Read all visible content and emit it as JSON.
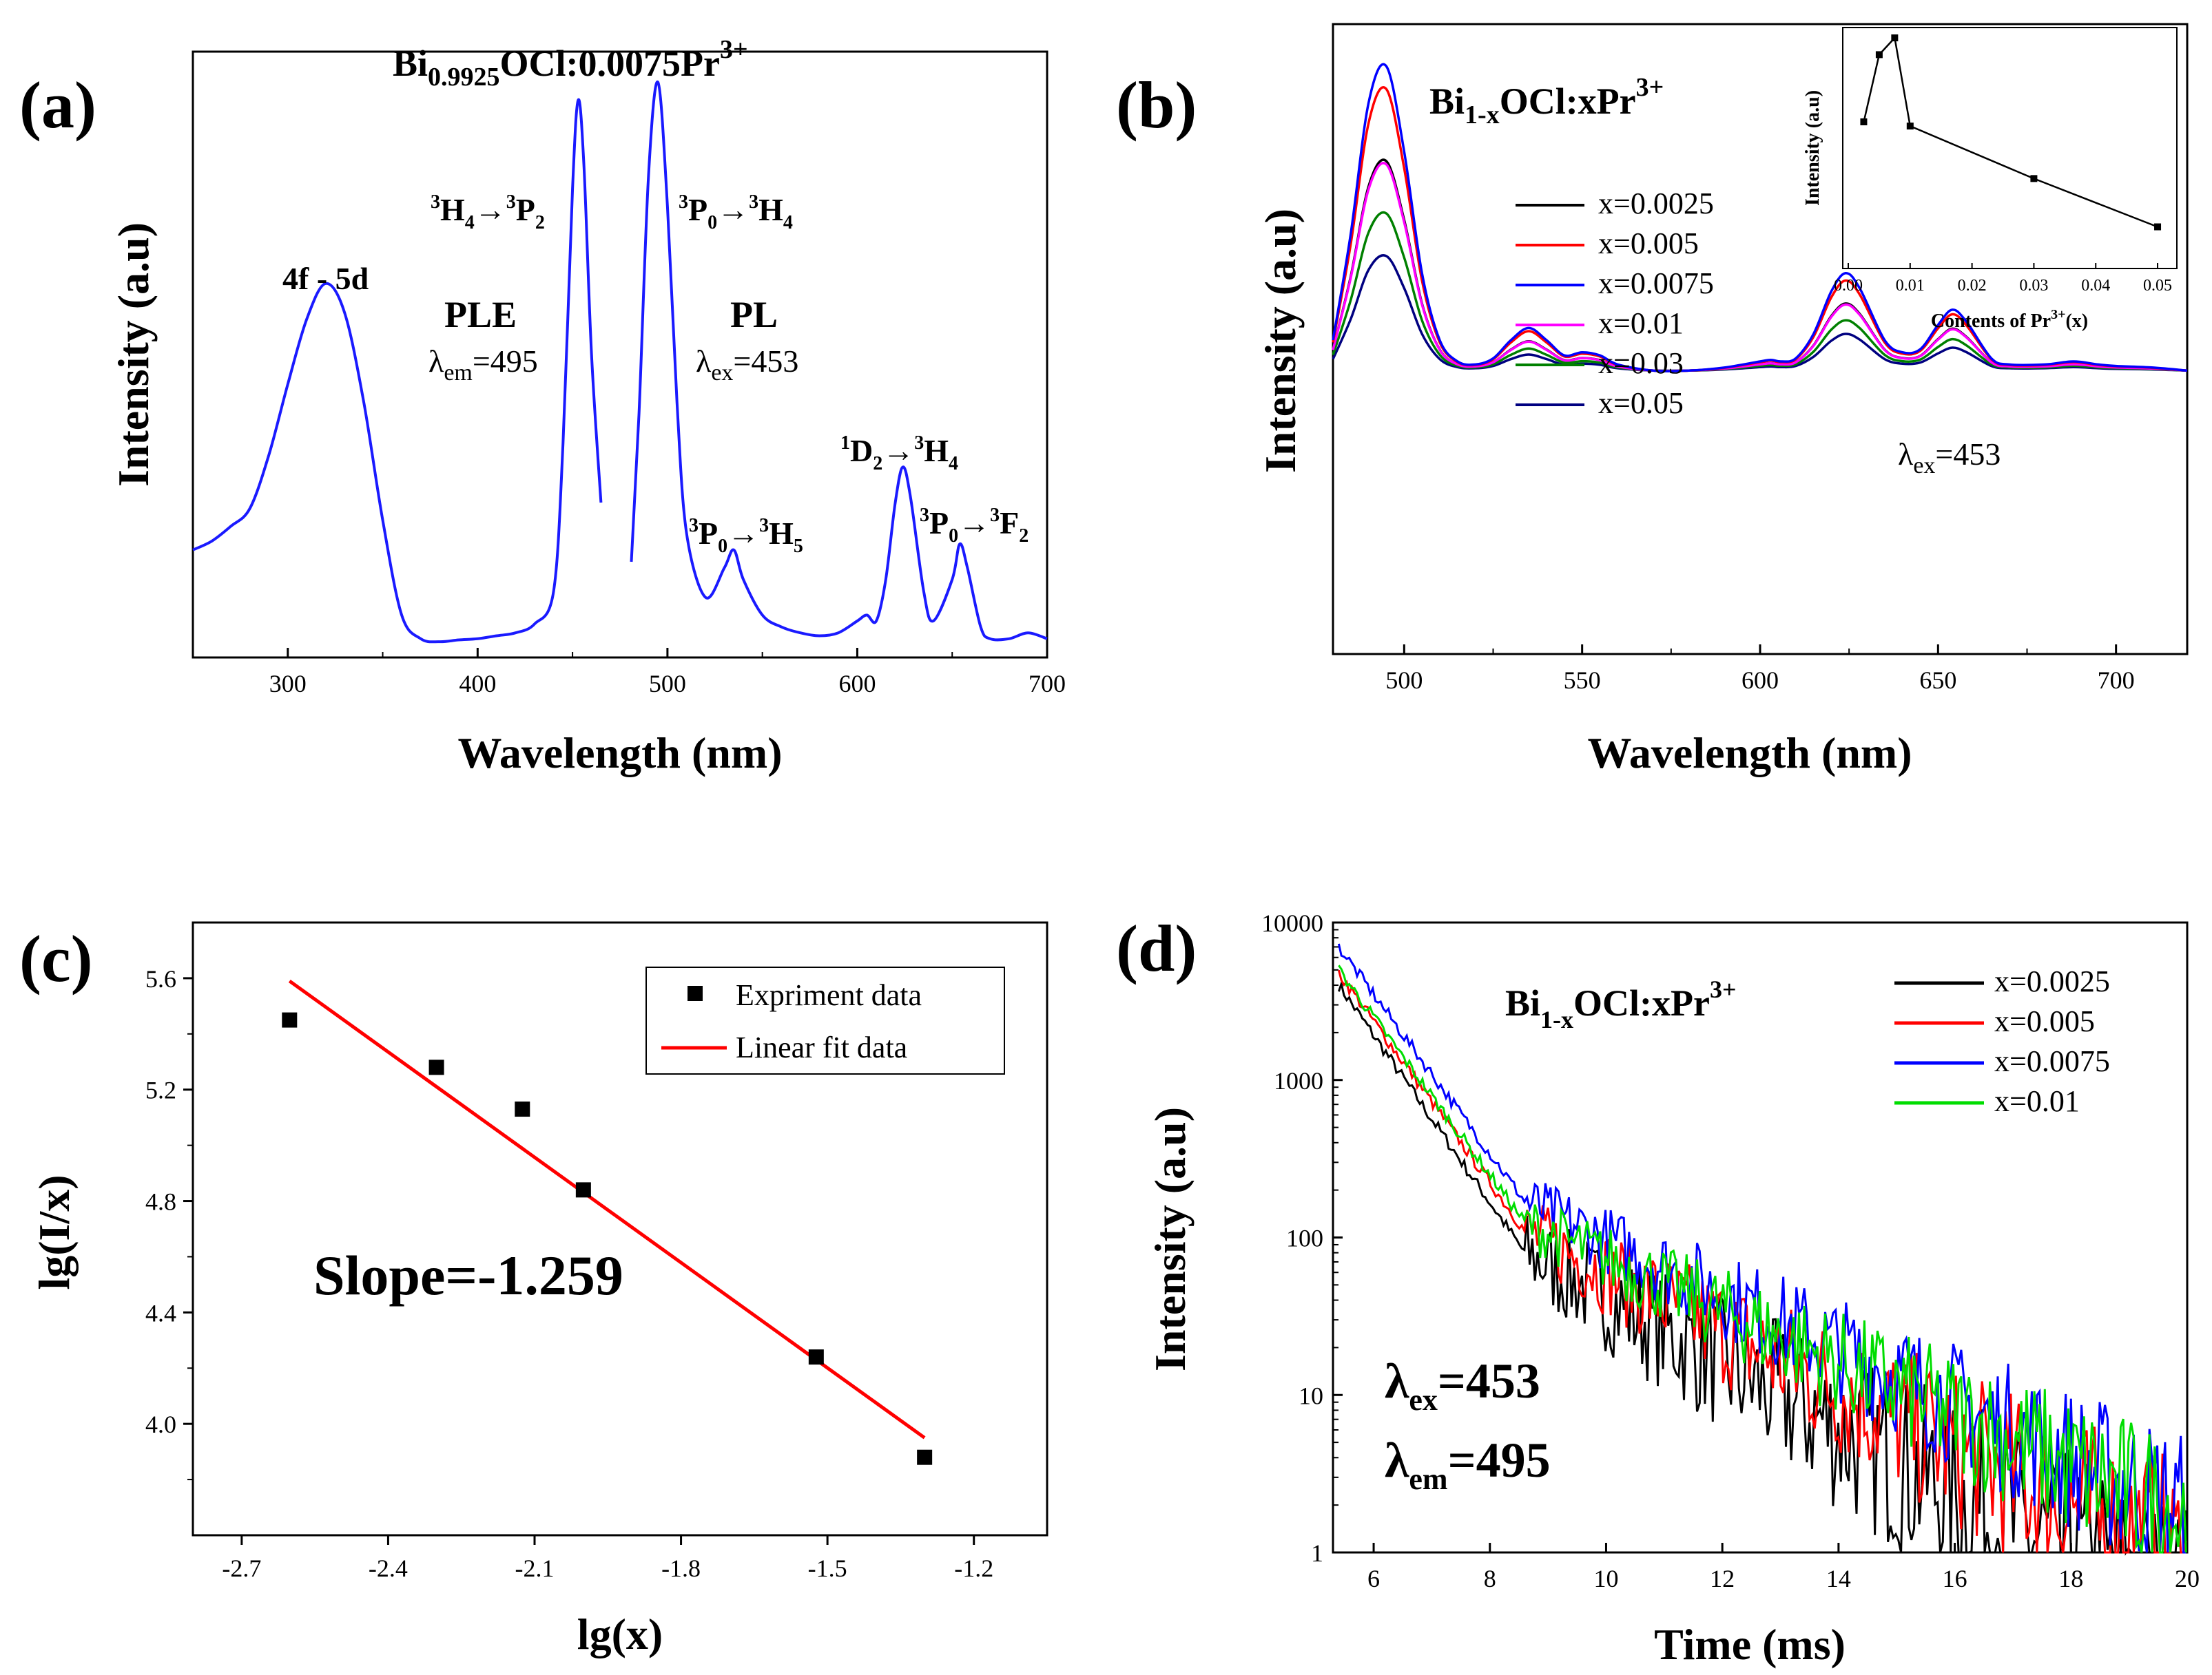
{
  "chart_data": [
    {
      "panel": "(a)",
      "type": "line",
      "xlabel": "Wavelength (nm)",
      "ylabel": "Intensity (a.u)",
      "xlim": [
        250,
        700
      ],
      "ylim": [
        0,
        1.0
      ],
      "xticks": [
        300,
        400,
        500,
        600,
        700
      ],
      "annotations": {
        "title": "Bi0.9925OCl:0.0075Pr3+",
        "band_4f5d": "4f - 5d",
        "ple": "PLE",
        "ple_lambda": "λem=495",
        "pl": "PL",
        "pl_lambda": "λex=453",
        "t_3H4_3P2": "3H4→3P2",
        "t_3P0_3H4": "3P0→3H4",
        "t_3P0_3H5": "3P0→3H5",
        "t_1D2_3H4": "1D2→3H4",
        "t_3P0_3F2": "3P0→3F2"
      },
      "series": [
        {
          "name": "PLE",
          "color": "#1a1aff",
          "x": [
            250,
            260,
            270,
            280,
            290,
            300,
            310,
            320,
            330,
            340,
            350,
            360,
            370,
            380,
            390,
            400,
            410,
            420,
            430,
            440,
            445,
            450,
            453,
            456,
            460,
            465
          ],
          "y": [
            0.17,
            0.185,
            0.21,
            0.24,
            0.33,
            0.45,
            0.56,
            0.62,
            0.57,
            0.42,
            0.22,
            0.06,
            0.02,
            0.015,
            0.018,
            0.02,
            0.025,
            0.03,
            0.045,
            0.1,
            0.35,
            0.78,
            0.93,
            0.82,
            0.5,
            0.25
          ]
        },
        {
          "name": "PL",
          "color": "#1a1aff",
          "x": [
            481,
            485,
            490,
            495,
            500,
            505,
            510,
            520,
            530,
            535,
            540,
            550,
            560,
            570,
            580,
            590,
            600,
            605,
            610,
            615,
            620,
            624,
            628,
            635,
            640,
            650,
            654,
            658,
            665,
            670,
            680,
            690,
            700
          ],
          "y": [
            0.15,
            0.4,
            0.8,
            0.96,
            0.75,
            0.42,
            0.2,
            0.09,
            0.14,
            0.17,
            0.12,
            0.06,
            0.04,
            0.03,
            0.025,
            0.03,
            0.05,
            0.06,
            0.05,
            0.12,
            0.25,
            0.31,
            0.26,
            0.1,
            0.05,
            0.12,
            0.18,
            0.14,
            0.04,
            0.02,
            0.02,
            0.03,
            0.02
          ]
        }
      ]
    },
    {
      "panel": "(b)",
      "type": "line",
      "title": "Bi1-xOCl:xPr3+",
      "xlabel": "Wavelength (nm)",
      "ylabel": "Intensity (a.u)",
      "xlim": [
        480,
        720
      ],
      "ylim": [
        0,
        1.0
      ],
      "xticks": [
        500,
        550,
        600,
        650,
        700
      ],
      "annotation": "λex=453",
      "legend_position": "upper-center",
      "base_profile_x": [
        480,
        485,
        490,
        495,
        500,
        505,
        510,
        515,
        520,
        525,
        530,
        535,
        540,
        545,
        550,
        555,
        560,
        570,
        580,
        590,
        600,
        603,
        606,
        610,
        615,
        620,
        624,
        628,
        635,
        640,
        645,
        650,
        654,
        658,
        665,
        670,
        680,
        688,
        695,
        700,
        710,
        720
      ],
      "base_profile_y": [
        0.1,
        0.45,
        0.88,
        1.0,
        0.72,
        0.32,
        0.1,
        0.03,
        0.02,
        0.04,
        0.1,
        0.14,
        0.1,
        0.05,
        0.06,
        0.05,
        0.02,
        0.0,
        0.0,
        0.01,
        0.03,
        0.035,
        0.03,
        0.04,
        0.12,
        0.26,
        0.32,
        0.27,
        0.1,
        0.06,
        0.07,
        0.15,
        0.2,
        0.16,
        0.04,
        0.02,
        0.02,
        0.03,
        0.02,
        0.015,
        0.01,
        0.0
      ],
      "baseline_fraction": 0.04,
      "series": [
        {
          "name": "x=0.0025",
          "color": "#000000",
          "peak": 0.64
        },
        {
          "name": "x=0.005",
          "color": "#ff0000",
          "peak": 0.86
        },
        {
          "name": "x=0.0075",
          "color": "#0000ff",
          "peak": 0.93
        },
        {
          "name": "x=0.01",
          "color": "#ff00ff",
          "peak": 0.63
        },
        {
          "name": "x=0.03",
          "color": "#008000",
          "peak": 0.48
        },
        {
          "name": "x=0.05",
          "color": "#000080",
          "peak": 0.35
        }
      ],
      "inset": {
        "xlabel": "Contents of Pr3+(x)",
        "ylabel": "Intensity (a.u)",
        "xlim": [
          0.0,
          0.052
        ],
        "ylim": [
          0,
          1.0
        ],
        "xticks": [
          "0.00",
          "0.01",
          "0.02",
          "0.03",
          "0.04",
          "0.05"
        ],
        "x": [
          0.0025,
          0.005,
          0.0075,
          0.01,
          0.03,
          0.05
        ],
        "y": [
          0.6,
          0.92,
          1.0,
          0.58,
          0.33,
          0.1
        ]
      }
    },
    {
      "panel": "(c)",
      "type": "scatter",
      "xlabel": "lg(x)",
      "ylabel": "lg(I/x)",
      "xlim": [
        -2.8,
        -1.05
      ],
      "ylim": [
        3.6,
        5.8
      ],
      "xticks": [
        "-2.7",
        "-2.4",
        "-2.1",
        "-1.8",
        "-1.5",
        "-1.2"
      ],
      "yticks": [
        "4.0",
        "4.4",
        "4.8",
        "5.2",
        "5.6"
      ],
      "annotation": "Slope=-1.259",
      "legend_position": "top-right",
      "series": [
        {
          "name": "Expriment data",
          "color": "#000000",
          "x": [
            -2.602,
            -2.301,
            -2.125,
            -2.0,
            -1.523,
            -1.301
          ],
          "y": [
            5.45,
            5.28,
            5.13,
            4.84,
            4.24,
            3.88
          ]
        },
        {
          "name": "Linear fit data",
          "color": "#ff0000",
          "x": [
            -2.602,
            -1.301
          ],
          "y": [
            5.59,
            3.95
          ]
        }
      ]
    },
    {
      "panel": "(d)",
      "type": "line",
      "title": "Bi1-xOCl:xPr3+",
      "xlabel": "Time (ms)",
      "ylabel": "Intensity (a.u)",
      "xlim": [
        5.3,
        20
      ],
      "ylim": [
        1,
        10000
      ],
      "yscale": "log",
      "xticks": [
        "6",
        "8",
        "10",
        "12",
        "14",
        "16",
        "18",
        "20"
      ],
      "yticks": [
        "1",
        "10",
        "100",
        "1000",
        "10000"
      ],
      "lambda_ex": "λex=453",
      "lambda_em": "λem=495",
      "legend_position": "top-right",
      "series": [
        {
          "name": "x=0.0025",
          "color": "#000000",
          "a0": 4000,
          "knee": 80,
          "decay": 0.48,
          "noise": 0.55
        },
        {
          "name": "x=0.005",
          "color": "#ff0000",
          "a0": 4800,
          "knee": 110,
          "decay": 0.43,
          "noise": 0.45
        },
        {
          "name": "x=0.0075",
          "color": "#0000ff",
          "a0": 7000,
          "knee": 170,
          "decay": 0.4,
          "noise": 0.35
        },
        {
          "name": "x=0.01",
          "color": "#00dd00",
          "a0": 5000,
          "knee": 125,
          "decay": 0.38,
          "noise": 0.35
        }
      ]
    }
  ]
}
